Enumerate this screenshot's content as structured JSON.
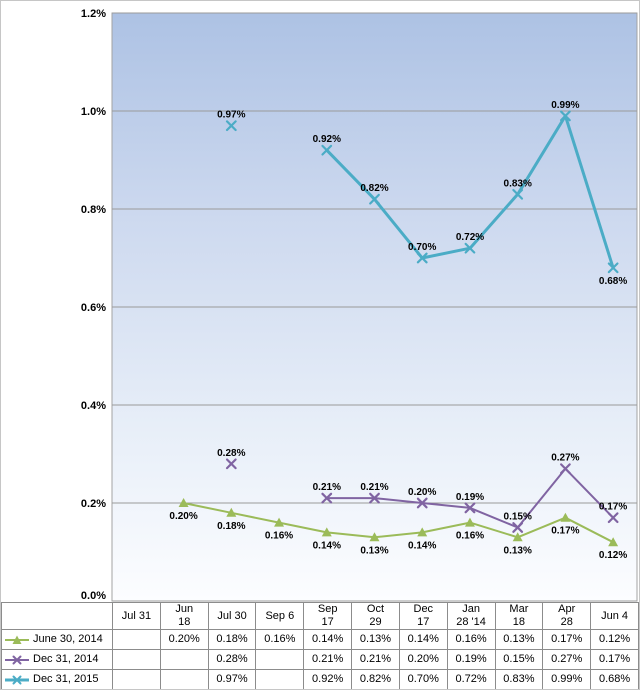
{
  "chart_data": {
    "type": "line",
    "title": "",
    "xlabel": "",
    "ylabel": "",
    "categories": [
      "Jul 31",
      "Jun 18",
      "Jul 30",
      "Sep 6",
      "Sep 17",
      "Oct 29",
      "Dec 17",
      "Jan 28 '14",
      "Mar 18",
      "Apr 28",
      "Jun 4"
    ],
    "series": [
      {
        "name": "June 30, 2014",
        "color": "#9BBB59",
        "marker": "triangle",
        "line_width": 2,
        "label_position": "below",
        "values": [
          null,
          0.2,
          0.18,
          0.16,
          0.14,
          0.13,
          0.14,
          0.16,
          0.13,
          0.17,
          0.12
        ]
      },
      {
        "name": "Dec 31, 2014",
        "color": "#8064A2",
        "marker": "x",
        "line_width": 2,
        "label_position": "above",
        "values": [
          null,
          null,
          0.28,
          null,
          0.21,
          0.21,
          0.2,
          0.19,
          0.15,
          0.27,
          0.17
        ]
      },
      {
        "name": "Dec 31, 2015",
        "color": "#4BACC6",
        "marker": "x",
        "line_width": 3,
        "label_position": "above",
        "label_overrides": {
          "10": "below"
        },
        "values": [
          null,
          null,
          0.97,
          null,
          0.92,
          0.82,
          0.7,
          0.72,
          0.83,
          0.99,
          0.68
        ]
      }
    ],
    "y_axis": {
      "tick_values": [
        0,
        0.2,
        0.4,
        0.6,
        0.8,
        1.0,
        1.2
      ],
      "tick_labels": [
        "0.0%",
        "0.2%",
        "0.4%",
        "0.6%",
        "0.8%",
        "1.0%",
        "1.2%"
      ]
    },
    "ylim": [
      0,
      1.2
    ],
    "grid": true,
    "value_suffix": "%",
    "legend_position": "table-left",
    "plot_background_top_color": "#ADC2E4",
    "plot_background_bottom_color": "#FCFDFF",
    "gridline_color": "#9A9A9A"
  }
}
